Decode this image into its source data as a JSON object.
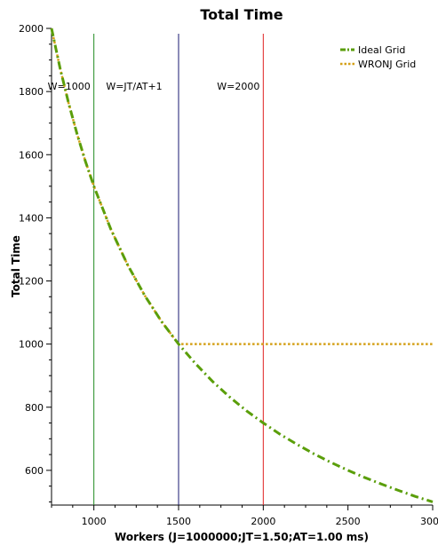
{
  "chart_data": {
    "type": "line",
    "title": "Total Time",
    "xlabel": "Workers (J=1000000;JT=1.50;AT=1.00 ms)",
    "ylabel": "Total Time",
    "xlim": [
      750,
      3000
    ],
    "ylim": [
      490,
      2000
    ],
    "xticks": [
      1000,
      1500,
      2000,
      2500,
      3000
    ],
    "yticks": [
      600,
      800,
      1000,
      1200,
      1400,
      1600,
      1800,
      2000
    ],
    "grid": false,
    "legend_position": "top-right",
    "series": [
      {
        "name": "Ideal Grid",
        "color": "#5a9e0a",
        "dash": "dash-dot",
        "x": [
          750,
          800,
          850,
          900,
          950,
          1000,
          1100,
          1200,
          1300,
          1400,
          1500,
          1600,
          1700,
          1800,
          1900,
          2000,
          2100,
          2200,
          2300,
          2400,
          2500,
          2600,
          2700,
          2800,
          2900,
          3000
        ],
        "y": [
          2000,
          1875,
          1765,
          1667,
          1579,
          1500,
          1364,
          1250,
          1154,
          1071,
          1000,
          938,
          882,
          833,
          789,
          750,
          714,
          682,
          652,
          625,
          600,
          577,
          556,
          536,
          517,
          500
        ]
      },
      {
        "name": "WRONJ Grid",
        "color": "#d4a017",
        "dash": "dot",
        "x": [
          750,
          800,
          850,
          900,
          950,
          1000,
          1100,
          1200,
          1300,
          1400,
          1500,
          1750,
          2000,
          2250,
          2500,
          2750,
          3000
        ],
        "y": [
          2000,
          1875,
          1765,
          1667,
          1579,
          1500,
          1364,
          1250,
          1154,
          1071,
          1000,
          1000,
          1000,
          1000,
          1000,
          1000,
          1000
        ]
      }
    ],
    "annotations": [
      {
        "label": "W=1000",
        "x": 1000,
        "color": "#228b22"
      },
      {
        "label": "W=JT/AT+1",
        "x": 1500,
        "color": "#191970"
      },
      {
        "label": "W=2000",
        "x": 2000,
        "color": "#e02020"
      }
    ]
  }
}
